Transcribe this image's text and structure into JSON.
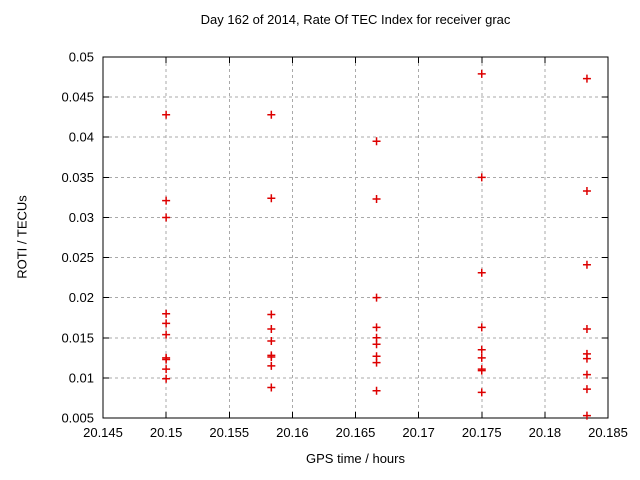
{
  "chart_data": {
    "type": "scatter",
    "title": "Day 162 of 2014, Rate Of TEC Index for receiver grac",
    "xlabel": "GPS time / hours",
    "ylabel": "ROTI / TECUs",
    "xlim": [
      20.145,
      20.185
    ],
    "ylim": [
      0.005,
      0.05
    ],
    "x_ticks": [
      20.145,
      20.15,
      20.155,
      20.16,
      20.165,
      20.17,
      20.175,
      20.18,
      20.185
    ],
    "x_tick_labels": [
      "20.145",
      "20.15",
      "20.155",
      "20.16",
      "20.165",
      "20.17",
      "20.175",
      "20.18",
      "20.185"
    ],
    "y_ticks": [
      0.005,
      0.01,
      0.015,
      0.02,
      0.025,
      0.03,
      0.035,
      0.04,
      0.045,
      0.05
    ],
    "y_tick_labels": [
      "0.005",
      "0.01",
      "0.015",
      "0.02",
      "0.025",
      "0.03",
      "0.035",
      "0.04",
      "0.045",
      "0.05"
    ],
    "grid": true,
    "legend_position": "none",
    "marker": "plus",
    "marker_color": "#dd0000",
    "series": [
      {
        "name": "ROTI",
        "points": [
          [
            20.15,
            0.0428
          ],
          [
            20.15,
            0.0321
          ],
          [
            20.15,
            0.03
          ],
          [
            20.15,
            0.018
          ],
          [
            20.15,
            0.0168
          ],
          [
            20.15,
            0.0154
          ],
          [
            20.15,
            0.0125
          ],
          [
            20.15,
            0.0123
          ],
          [
            20.15,
            0.0111
          ],
          [
            20.15,
            0.0099
          ],
          [
            20.158333,
            0.0428
          ],
          [
            20.158333,
            0.0324
          ],
          [
            20.158333,
            0.0179
          ],
          [
            20.158333,
            0.0161
          ],
          [
            20.158333,
            0.0146
          ],
          [
            20.158333,
            0.0128
          ],
          [
            20.158333,
            0.0126
          ],
          [
            20.158333,
            0.0115
          ],
          [
            20.158333,
            0.0088
          ],
          [
            20.166667,
            0.0395
          ],
          [
            20.166667,
            0.0323
          ],
          [
            20.166667,
            0.02
          ],
          [
            20.166667,
            0.0163
          ],
          [
            20.166667,
            0.015
          ],
          [
            20.166667,
            0.0142
          ],
          [
            20.166667,
            0.0127
          ],
          [
            20.166667,
            0.0119
          ],
          [
            20.166667,
            0.0084
          ],
          [
            20.175,
            0.0479
          ],
          [
            20.175,
            0.035
          ],
          [
            20.175,
            0.0231
          ],
          [
            20.175,
            0.0163
          ],
          [
            20.175,
            0.0135
          ],
          [
            20.175,
            0.0125
          ],
          [
            20.175,
            0.0111
          ],
          [
            20.175,
            0.0109
          ],
          [
            20.175,
            0.0082
          ],
          [
            20.183333,
            0.0473
          ],
          [
            20.183333,
            0.0333
          ],
          [
            20.183333,
            0.0241
          ],
          [
            20.183333,
            0.0161
          ],
          [
            20.183333,
            0.013
          ],
          [
            20.183333,
            0.0124
          ],
          [
            20.183333,
            0.0104
          ],
          [
            20.183333,
            0.0086
          ],
          [
            20.183333,
            0.0053
          ]
        ]
      }
    ]
  }
}
